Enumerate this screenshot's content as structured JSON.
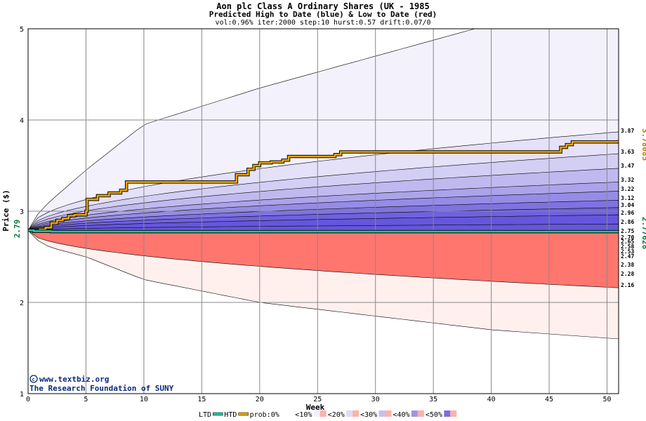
{
  "header": {
    "title": "Aon plc Class A Ordinary Shares (UK - 1985",
    "subtitle": "Predicted High to Date (blue) &  Low to Date (red)",
    "params": "vol:0.96% iter:2000 step:10 hurst:0.57 drift:0.07/0"
  },
  "chart_data": {
    "type": "area",
    "xlabel": "Week",
    "ylabel": "Price ($)",
    "xlim": [
      0,
      51
    ],
    "ylim": [
      1,
      5
    ],
    "x_ticks": [
      0,
      5,
      10,
      15,
      20,
      25,
      30,
      35,
      40,
      45,
      50
    ],
    "y_ticks": [
      1,
      2,
      3,
      4,
      5
    ],
    "grid": true,
    "start_price_label": "2.79",
    "htd_value_label": "3.78085",
    "ltd_value_label": "2.77628",
    "band_labels_high": [
      "3.87",
      "3.63",
      "3.47",
      "3.32",
      "3.22",
      "3.12",
      "3.04",
      "2.96",
      "2.86"
    ],
    "band_labels_low": [
      "2.75",
      "2.70",
      "2.65",
      "2.58",
      "2.53",
      "2.47",
      "2.38",
      "2.28",
      "2.16"
    ],
    "probability_envelopes": {
      "x": [
        0,
        1,
        2,
        5,
        10,
        20,
        30,
        40,
        51
      ],
      "upper_max": [
        2.79,
        3.0,
        3.12,
        3.45,
        3.95,
        4.35,
        4.7,
        5.05,
        5.4
      ],
      "lower_min": [
        2.79,
        2.66,
        2.6,
        2.5,
        2.25,
        2.0,
        1.85,
        1.7,
        1.6
      ]
    },
    "series": [
      {
        "name": "HTD",
        "color": "#e8a600",
        "x": [
          0,
          0.5,
          1.0,
          1.5,
          2.0,
          2.5,
          3.0,
          3.5,
          4.0,
          5.0,
          5.1,
          6.0,
          7.0,
          8.0,
          8.5,
          17.5,
          18.0,
          19.0,
          19.5,
          20.0,
          21.0,
          22.0,
          22.5,
          26.5,
          27.0,
          45.0,
          46.0,
          46.5,
          47.0,
          51.0
        ],
        "values": [
          2.79,
          2.79,
          2.8,
          2.82,
          2.87,
          2.9,
          2.92,
          2.95,
          2.96,
          3.0,
          3.13,
          3.17,
          3.2,
          3.23,
          3.32,
          3.32,
          3.4,
          3.46,
          3.5,
          3.53,
          3.54,
          3.56,
          3.6,
          3.62,
          3.65,
          3.65,
          3.7,
          3.73,
          3.76,
          3.78085
        ]
      },
      {
        "name": "LTD",
        "color": "#20c8a0",
        "x": [
          0,
          0.5,
          1.0,
          2.0,
          51.0
        ],
        "values": [
          2.79,
          2.78,
          2.78,
          2.77628,
          2.77628
        ]
      }
    ]
  },
  "legend": {
    "items": [
      {
        "label": "LTD",
        "color": "#20c8a0",
        "kind": "line"
      },
      {
        "label": "HTD",
        "color": "#e8a600",
        "kind": "line"
      },
      {
        "label": "prob:0%",
        "color": "#ffffff",
        "kind": "swatch"
      },
      {
        "label": "<10%",
        "color": "#f3f0fb",
        "kind": "swatch"
      },
      {
        "label": "<20%",
        "color": "#e0dcf6",
        "kind": "swatch"
      },
      {
        "label": "<30%",
        "color": "#c8bff0",
        "kind": "swatch"
      },
      {
        "label": "<40%",
        "color": "#a094e4",
        "kind": "swatch"
      },
      {
        "label": "<50%",
        "color": "#7d6ee0",
        "kind": "swatch"
      }
    ]
  },
  "watermark": {
    "line1": "www.textbiz.org",
    "line2": "The Research Foundation of SUNY"
  }
}
